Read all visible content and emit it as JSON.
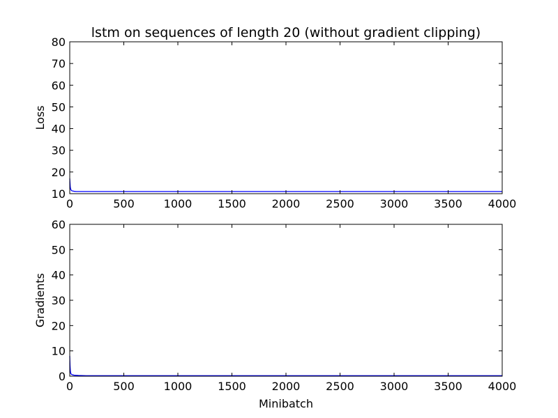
{
  "title": "lstm on sequences of length 20 (without gradient clipping)",
  "chart_data": [
    {
      "type": "line",
      "title": "lstm on sequences of length 20 (without gradient clipping)",
      "xlabel": "",
      "ylabel": "Loss",
      "xlim": [
        0,
        4000
      ],
      "ylim": [
        10,
        80
      ],
      "xticks": [
        0,
        500,
        1000,
        1500,
        2000,
        2500,
        3000,
        3500,
        4000
      ],
      "yticks": [
        10,
        20,
        30,
        40,
        50,
        60,
        70,
        80
      ],
      "grid": false,
      "series": [
        {
          "color": "#0000ff",
          "x": [
            0,
            5,
            10,
            20,
            40,
            60,
            100,
            200,
            500,
            1000,
            1500,
            2000,
            2500,
            3000,
            3500,
            4000
          ],
          "y": [
            17.0,
            13.0,
            11.8,
            11.3,
            11.1,
            11.0,
            11.0,
            11.0,
            11.0,
            11.0,
            11.0,
            11.0,
            11.0,
            11.0,
            11.0,
            11.0
          ]
        }
      ]
    },
    {
      "type": "line",
      "title": "",
      "xlabel": "Minibatch",
      "ylabel": "Gradients",
      "xlim": [
        0,
        4000
      ],
      "ylim": [
        0,
        60
      ],
      "xticks": [
        0,
        500,
        1000,
        1500,
        2000,
        2500,
        3000,
        3500,
        4000
      ],
      "yticks": [
        0,
        10,
        20,
        30,
        40,
        50,
        60
      ],
      "grid": false,
      "series": [
        {
          "color": "#0000ff",
          "x": [
            0,
            3,
            6,
            10,
            20,
            40,
            80,
            150,
            500,
            1000,
            1500,
            2000,
            2500,
            3000,
            3500,
            4000
          ],
          "y": [
            8.0,
            4.0,
            2.0,
            1.0,
            0.6,
            0.4,
            0.3,
            0.2,
            0.2,
            0.2,
            0.2,
            0.2,
            0.2,
            0.2,
            0.2,
            0.2
          ]
        }
      ]
    }
  ]
}
